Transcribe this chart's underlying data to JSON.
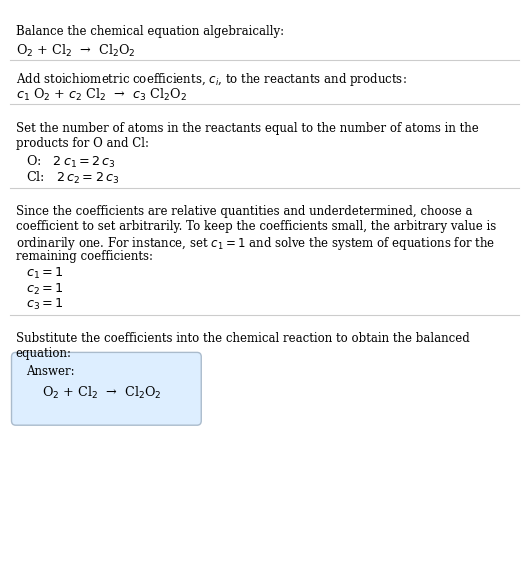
{
  "bg_color": "#ffffff",
  "text_color": "#000000",
  "line_color": "#cccccc",
  "title": "Balance the chemical equation algebraically:",
  "section1_line1": "O$_2$ + Cl$_2$  →  Cl$_2$O$_2$",
  "section2_header": "Add stoichiometric coefficients, $c_i$, to the reactants and products:",
  "section2_line1": "$c_1$ O$_2$ + $c_2$ Cl$_2$  →  $c_3$ Cl$_2$O$_2$",
  "section3_header_1": "Set the number of atoms in the reactants equal to the number of atoms in the",
  "section3_header_2": "products for O and Cl:",
  "section3_O": "O:   $2\\,c_1 = 2\\,c_3$",
  "section3_Cl": "Cl:   $2\\,c_2 = 2\\,c_3$",
  "section4_header_1": "Since the coefficients are relative quantities and underdetermined, choose a",
  "section4_header_2": "coefficient to set arbitrarily. To keep the coefficients small, the arbitrary value is",
  "section4_header_3": "ordinarily one. For instance, set $c_1 = 1$ and solve the system of equations for the",
  "section4_header_4": "remaining coefficients:",
  "section4_c1": "$c_1 = 1$",
  "section4_c2": "$c_2 = 1$",
  "section4_c3": "$c_3 = 1$",
  "section5_header_1": "Substitute the coefficients into the chemical reaction to obtain the balanced",
  "section5_header_2": "equation:",
  "answer_label": "Answer:",
  "answer_eq": "O$_2$ + Cl$_2$  →  Cl$_2$O$_2$",
  "answer_box_color": "#ddeeff",
  "answer_box_edge": "#aabbcc",
  "figwidth": 5.29,
  "figheight": 5.67,
  "dpi": 100
}
